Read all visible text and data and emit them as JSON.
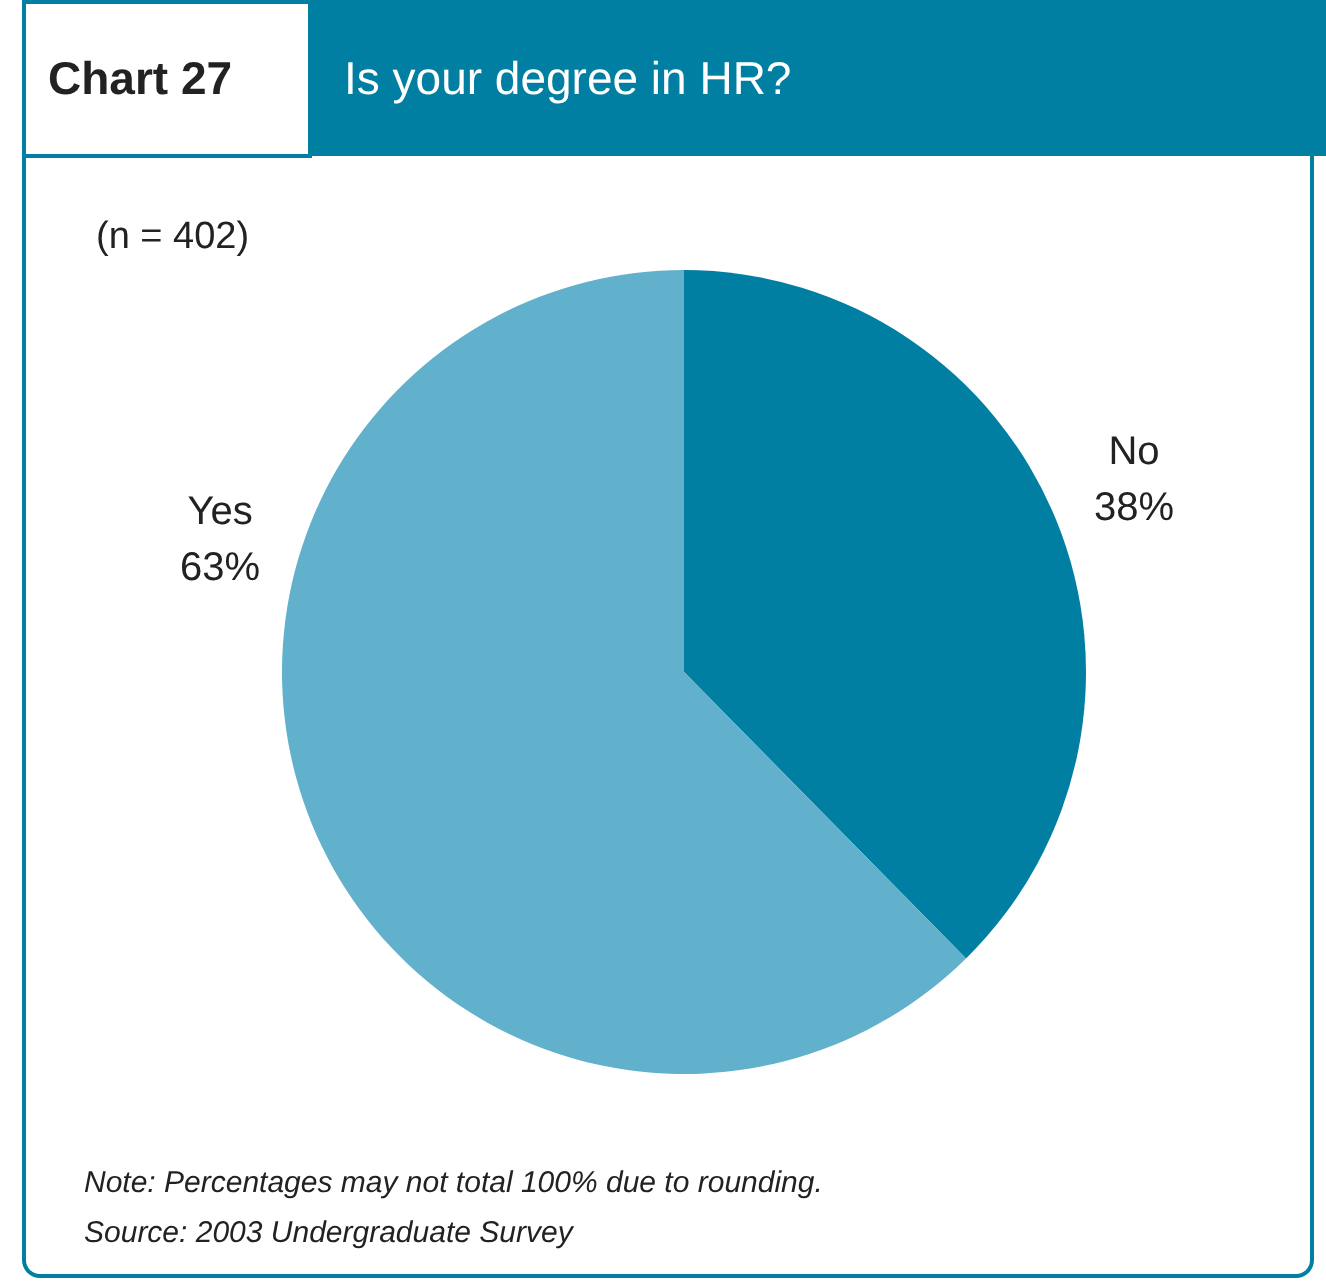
{
  "chart_data": {
    "type": "pie",
    "title": "Is your degree in HR?",
    "categories": [
      "No",
      "Yes"
    ],
    "values": [
      38,
      63
    ],
    "colors": [
      "#007fa3",
      "#62b1cc"
    ],
    "value_labels": [
      "38%",
      "63%"
    ],
    "annotations": [
      "Chart 27",
      "(n = 402)",
      "Note: Percentages may not total 100% due to rounding.",
      "Source: 2003 Undergraduate Survey"
    ]
  }
}
